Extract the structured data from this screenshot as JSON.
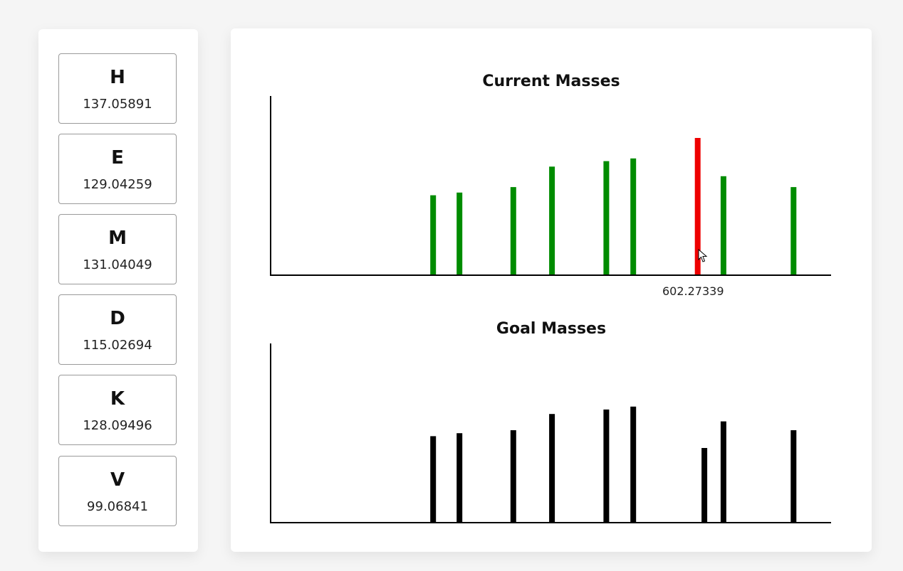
{
  "amino_acids": [
    {
      "letter": "H",
      "mass": "137.05891"
    },
    {
      "letter": "E",
      "mass": "129.04259"
    },
    {
      "letter": "M",
      "mass": "131.04049"
    },
    {
      "letter": "D",
      "mass": "115.02694"
    },
    {
      "letter": "K",
      "mass": "128.09496"
    },
    {
      "letter": "V",
      "mass": "99.06841"
    }
  ],
  "hover_label": "602.27339",
  "colors": {
    "matched": "#008c00",
    "highlighted": "#ee0000",
    "goal": "#000000"
  },
  "chart_data": [
    {
      "type": "bar",
      "title": "Current Masses",
      "xlabel": "",
      "ylabel": "",
      "xlim": [
        0,
        1000
      ],
      "ylim": [
        0,
        100
      ],
      "bars": [
        {
          "x": 290,
          "value": 58,
          "state": "matched"
        },
        {
          "x": 337,
          "value": 60,
          "state": "matched"
        },
        {
          "x": 433,
          "value": 64,
          "state": "matched"
        },
        {
          "x": 502,
          "value": 79,
          "state": "matched"
        },
        {
          "x": 599,
          "value": 83,
          "state": "matched"
        },
        {
          "x": 647,
          "value": 85,
          "state": "matched"
        },
        {
          "x": 762,
          "value": 100,
          "state": "highlighted",
          "label": "602.27339"
        },
        {
          "x": 808,
          "value": 72,
          "state": "matched"
        },
        {
          "x": 933,
          "value": 64,
          "state": "matched"
        }
      ]
    },
    {
      "type": "bar",
      "title": "Goal Masses",
      "xlabel": "",
      "ylabel": "",
      "xlim": [
        0,
        1000
      ],
      "ylim": [
        0,
        100
      ],
      "bars": [
        {
          "x": 290,
          "value": 58
        },
        {
          "x": 337,
          "value": 60
        },
        {
          "x": 433,
          "value": 62
        },
        {
          "x": 502,
          "value": 73
        },
        {
          "x": 599,
          "value": 76
        },
        {
          "x": 647,
          "value": 78
        },
        {
          "x": 774,
          "value": 50
        },
        {
          "x": 808,
          "value": 68
        },
        {
          "x": 933,
          "value": 62
        }
      ]
    }
  ]
}
